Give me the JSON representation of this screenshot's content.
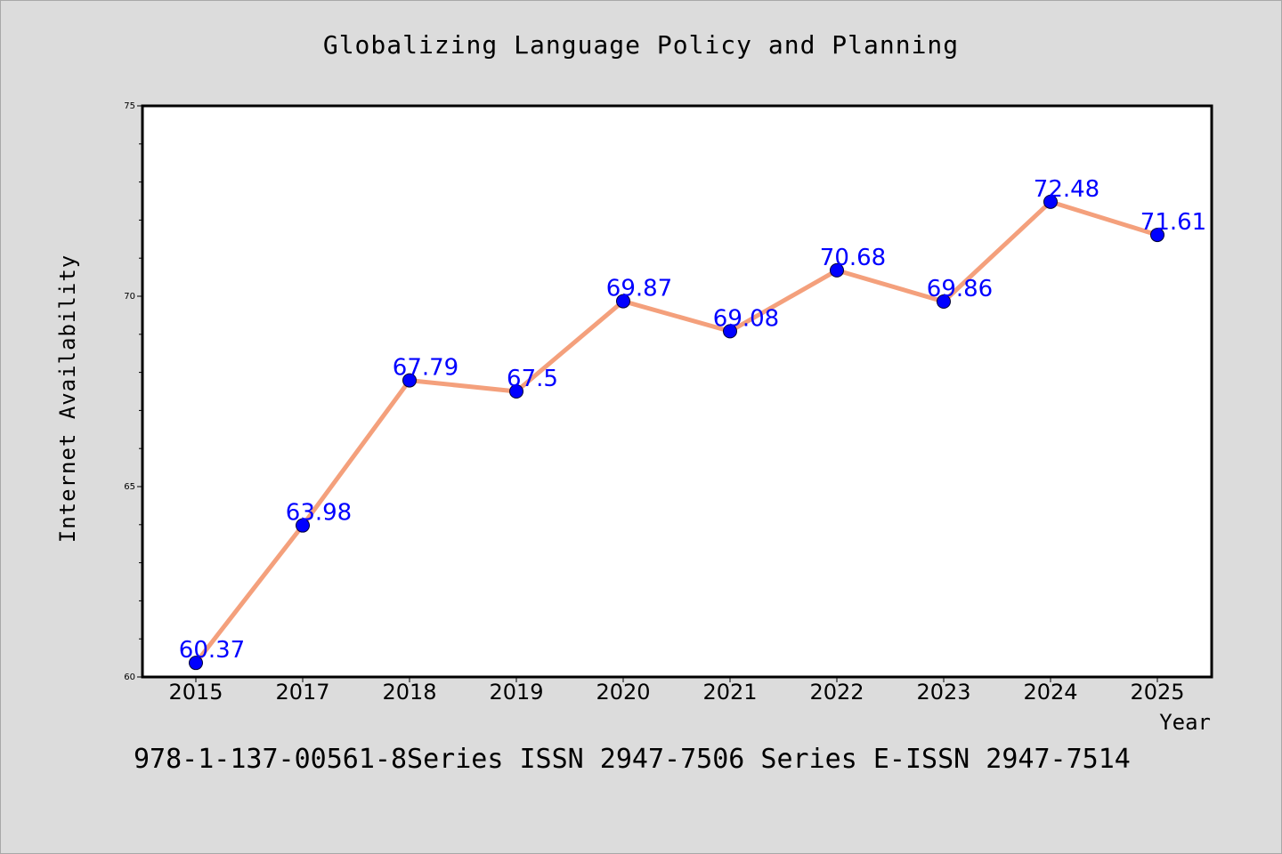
{
  "title": "Globalizing Language Policy and Planning",
  "footer": "978-1-137-00561-8Series ISSN 2947-7506 Series E-ISSN 2947-7514",
  "colors": {
    "background": "#dcdcdc",
    "plot_background": "#ffffff",
    "line": "#f4a07c",
    "marker": "#0000ff",
    "data_label": "#0000ff"
  },
  "chart_data": {
    "type": "line",
    "title": "Globalizing Language Policy and Planning",
    "xlabel": "Year",
    "ylabel": "Internet Availability",
    "categories": [
      "2015",
      "2017",
      "2018",
      "2019",
      "2020",
      "2021",
      "2022",
      "2023",
      "2024",
      "2025"
    ],
    "series": [
      {
        "values": [
          60.37,
          63.98,
          67.79,
          67.5,
          69.87,
          69.08,
          70.68,
          69.86,
          72.48,
          71.61
        ],
        "labels": [
          "60.37",
          "63.98",
          "67.79",
          "67.5",
          "69.87",
          "69.08",
          "70.68",
          "69.86",
          "72.48",
          "71.61"
        ]
      }
    ],
    "ylim": [
      60,
      75
    ],
    "yticks": [
      "60",
      "65",
      "70",
      "75"
    ],
    "yminor_step": 1,
    "grid": false,
    "legend": "none"
  }
}
